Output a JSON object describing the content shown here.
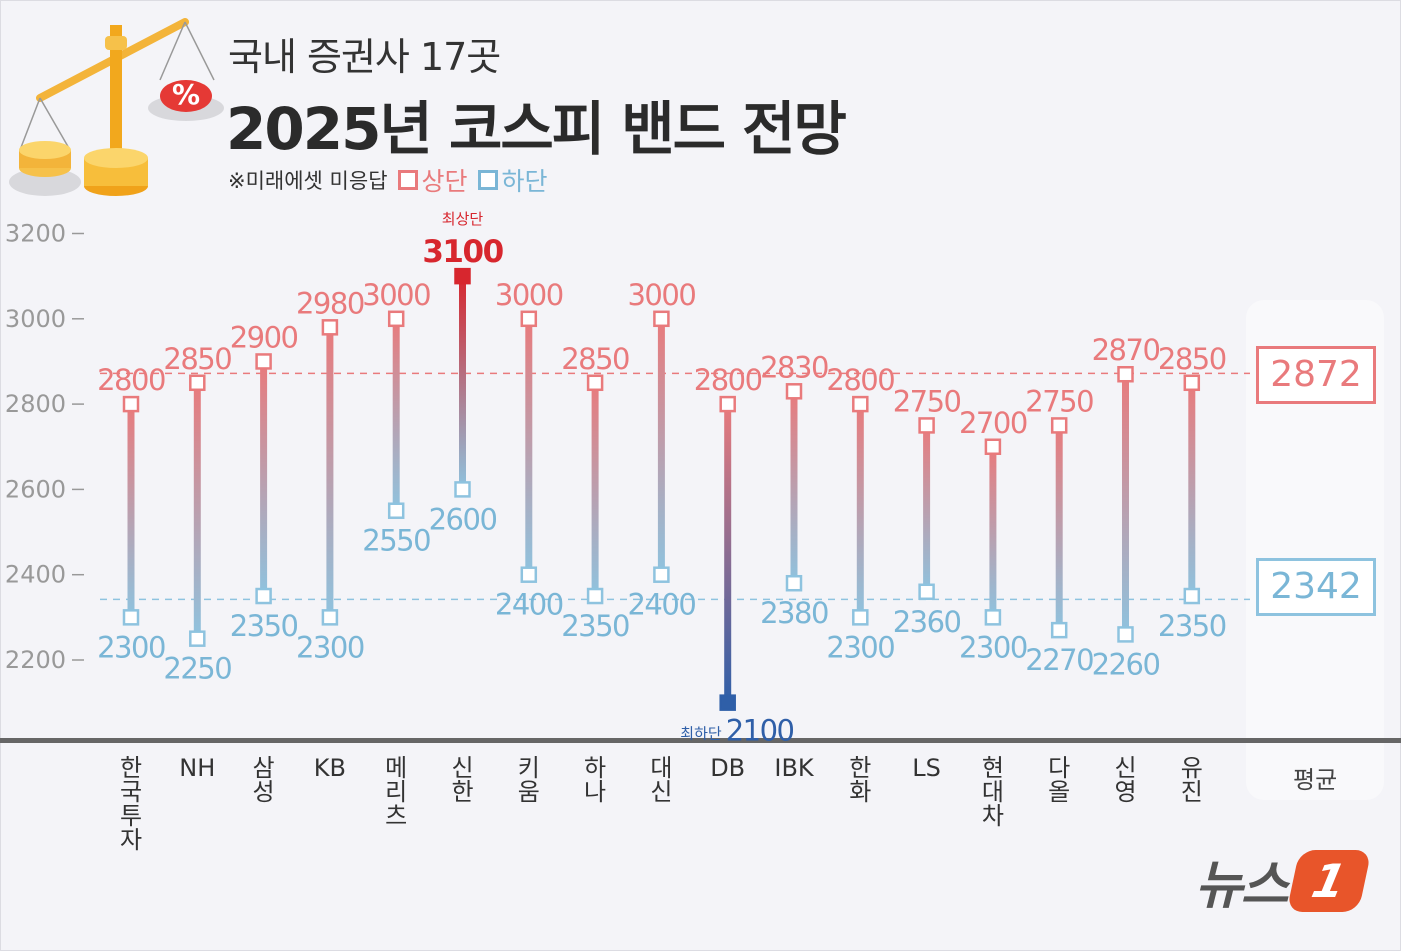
{
  "header": {
    "subtitle": "국내 증권사 17곳",
    "title": "2025년 코스피 밴드 전망",
    "note": "※미래에셋 미응답",
    "legend_upper": "상단",
    "legend_lower": "하단"
  },
  "average": {
    "label": "평균",
    "upper": "2872",
    "lower": "2342"
  },
  "annotations": {
    "max_label": "최상단",
    "min_label": "최하단"
  },
  "logo": {
    "text": "뉴스",
    "mark": "1"
  },
  "colors": {
    "upper": "#e97a7c",
    "lower": "#8ec3df",
    "max": "#d7262e",
    "min": "#2f5fa8",
    "axis": "#555555"
  },
  "chart_data": {
    "type": "range",
    "title": "2025년 코스피 밴드 전망",
    "ylim": [
      2100,
      3200
    ],
    "y_ticks": [
      "3200",
      "3000",
      "2800",
      "2600",
      "2400",
      "2200"
    ],
    "categories": [
      "한국투자",
      "NH",
      "삼성",
      "KB",
      "메리츠",
      "신한",
      "키움",
      "하나",
      "대신",
      "DB",
      "IBK",
      "한화",
      "LS",
      "현대차",
      "다올",
      "신영",
      "유진"
    ],
    "series": [
      {
        "name": "상단",
        "values": [
          2800,
          2850,
          2900,
          2980,
          3000,
          3100,
          3000,
          2850,
          3000,
          2800,
          2830,
          2800,
          2750,
          2700,
          2750,
          2870,
          2850
        ]
      },
      {
        "name": "하단",
        "values": [
          2300,
          2250,
          2350,
          2300,
          2550,
          2600,
          2400,
          2350,
          2400,
          2100,
          2380,
          2300,
          2360,
          2300,
          2270,
          2260,
          2350
        ]
      }
    ],
    "average": {
      "upper": 2872,
      "lower": 2342
    },
    "highlight": {
      "max_index": 5,
      "min_index": 9
    }
  }
}
